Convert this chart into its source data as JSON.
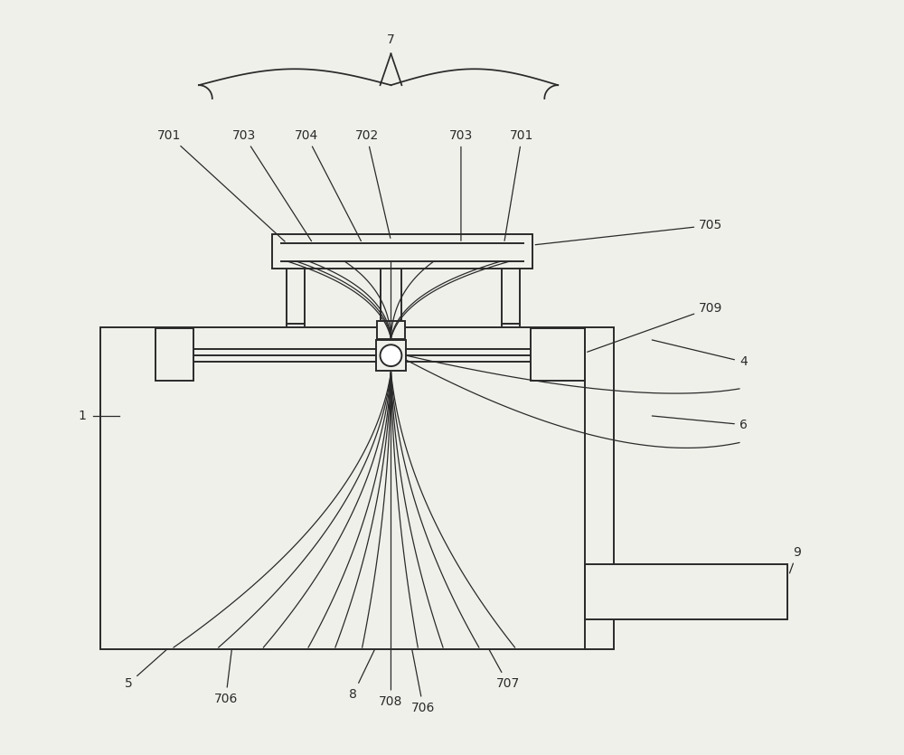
{
  "bg_color": "#f0f0eb",
  "line_color": "#2a2a2a",
  "lw": 1.4,
  "ann_lw": 0.9,
  "fig_w": 10.0,
  "fig_h": 8.35,
  "fs": 10
}
